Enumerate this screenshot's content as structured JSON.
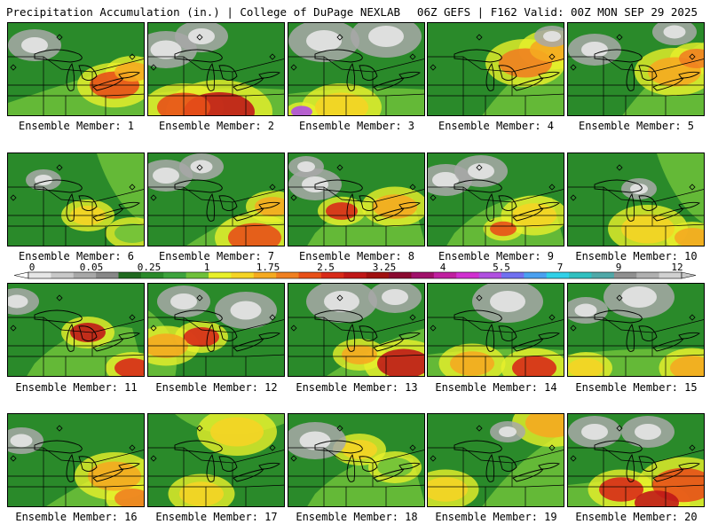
{
  "header": {
    "left": "Precipitation Accumulation (in.) | College of DuPage NEXLAB",
    "right": "06Z GEFS | F162 Valid: 00Z MON SEP 29 2025"
  },
  "colorbar": {
    "labels": [
      "0",
      "0.05",
      "0.25",
      "1",
      "1.75",
      "2.5",
      "3.25",
      "4",
      "5.5",
      "7",
      "9",
      "12"
    ],
    "colors": [
      "#e6e6e6",
      "#c8c8c8",
      "#a8a8a8",
      "#888888",
      "#1f6a1f",
      "#2a8a2a",
      "#3da33d",
      "#6fc13a",
      "#e8f02a",
      "#f5d425",
      "#f5aa20",
      "#f08020",
      "#e85018",
      "#d82a18",
      "#c01818",
      "#a01010",
      "#8a0a30",
      "#a0106a",
      "#c020a0",
      "#d030d0",
      "#b050e0",
      "#7070f0",
      "#4aa0f0",
      "#30d0e8",
      "#30c0c0",
      "#50a8a8",
      "#909090",
      "#b0b0b0",
      "#d0d0d0"
    ]
  },
  "panels": [
    {
      "label": "Ensemble Member: 1"
    },
    {
      "label": "Ensemble Member: 2"
    },
    {
      "label": "Ensemble Member: 3"
    },
    {
      "label": "Ensemble Member: 4"
    },
    {
      "label": "Ensemble Member: 5"
    },
    {
      "label": "Ensemble Member: 6"
    },
    {
      "label": "Ensemble Member: 7"
    },
    {
      "label": "Ensemble Member: 8"
    },
    {
      "label": "Ensemble Member: 9"
    },
    {
      "label": "Ensemble Member: 10"
    },
    {
      "label": "Ensemble Member: 11"
    },
    {
      "label": "Ensemble Member: 12"
    },
    {
      "label": "Ensemble Member: 13"
    },
    {
      "label": "Ensemble Member: 14"
    },
    {
      "label": "Ensemble Member: 15"
    },
    {
      "label": "Ensemble Member: 16"
    },
    {
      "label": "Ensemble Member: 17"
    },
    {
      "label": "Ensemble Member: 18"
    },
    {
      "label": "Ensemble Member: 19"
    },
    {
      "label": "Ensemble Member: 20"
    }
  ]
}
